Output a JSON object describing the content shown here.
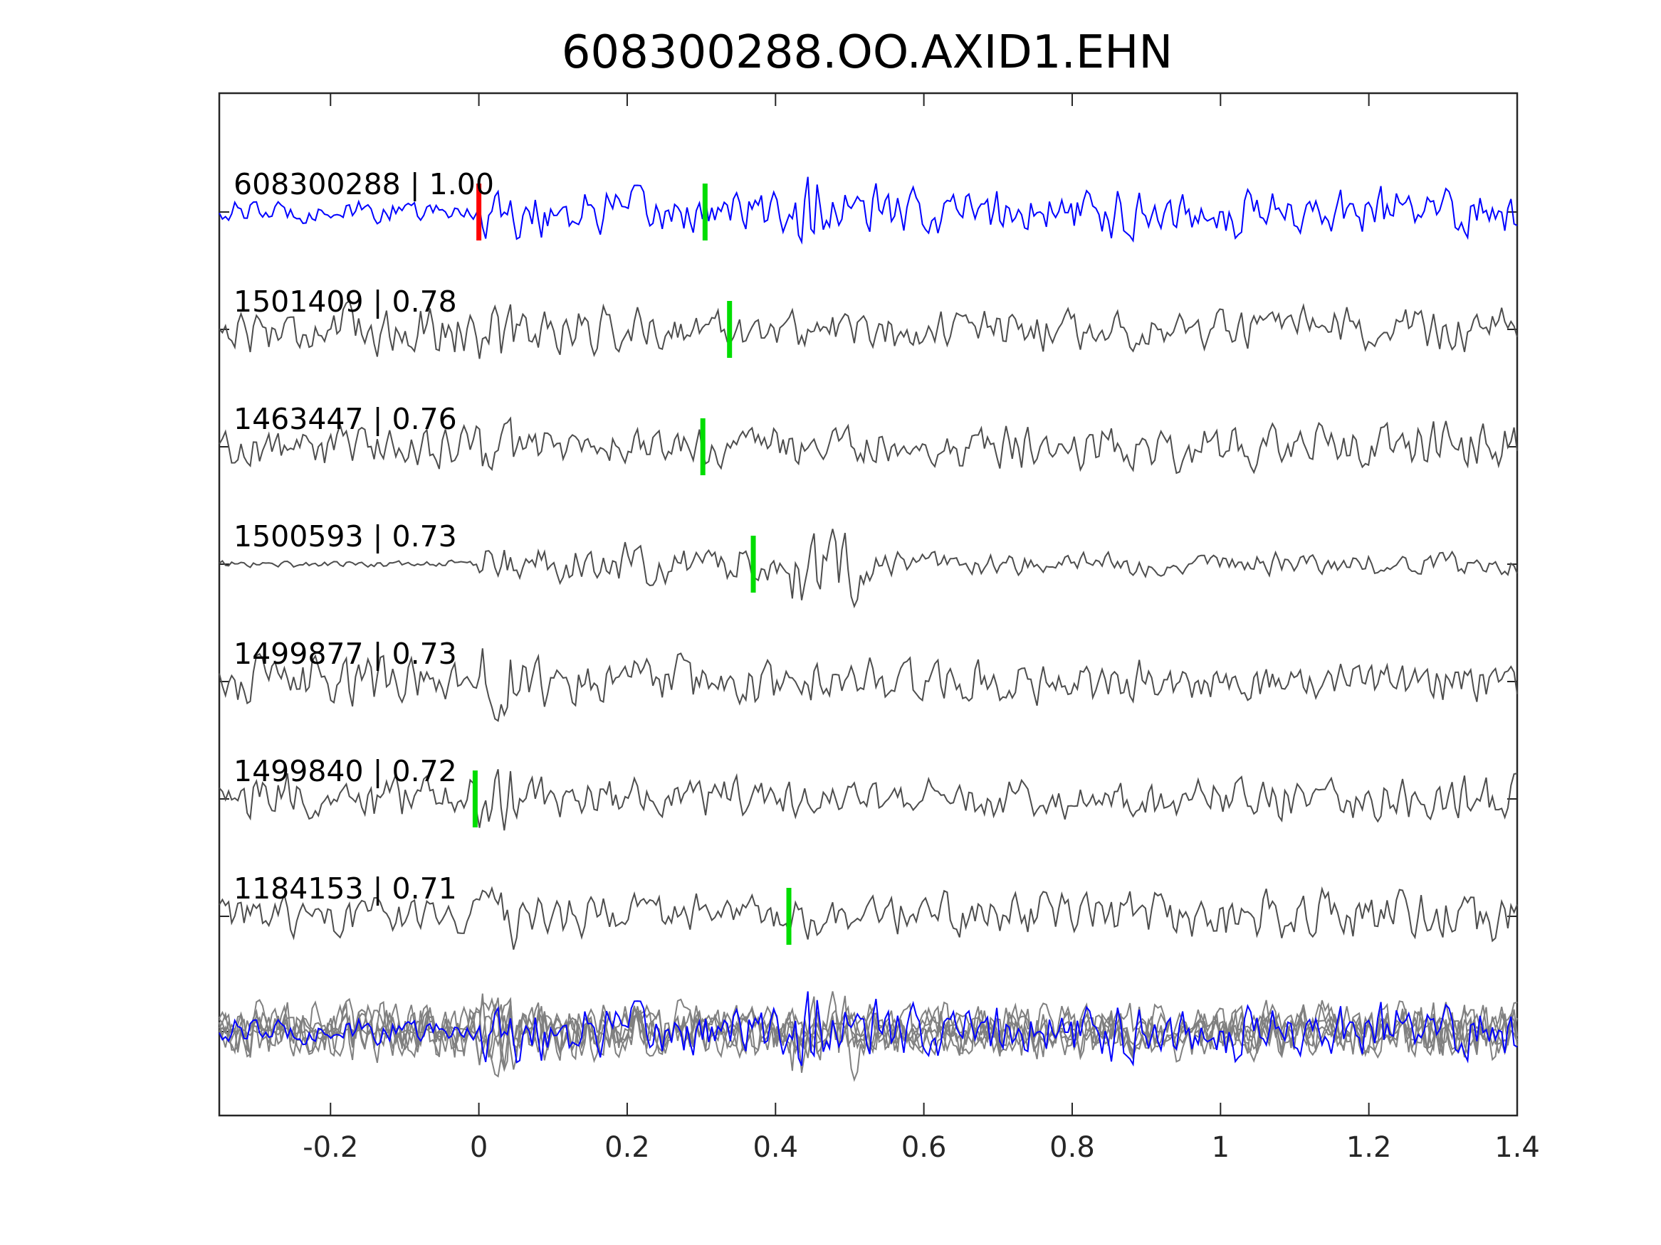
{
  "chart_data": {
    "type": "line",
    "title": "608300288.OO.AXID1.EHN",
    "xlabel": "",
    "ylabel": "",
    "xlim": [
      -0.35,
      1.4
    ],
    "x_ticks": [
      -0.2,
      0,
      0.2,
      0.4,
      0.6,
      0.8,
      1,
      1.2,
      1.4
    ],
    "x_tick_labels": [
      "-0.2",
      "0",
      "0.2",
      "0.4",
      "0.6",
      "0.8",
      "1",
      "1.2",
      "1.4"
    ],
    "grid": false,
    "colors": {
      "template": "#0000ff",
      "match": "#4d4d4d",
      "overlay": "#808080",
      "origin_pick": "#ff0000",
      "phase_pick": "#00dd00"
    },
    "series": [
      {
        "label": "608300288 | 1.00",
        "color": "#0000ff",
        "picks": [
          {
            "t": 0.0,
            "color": "#ff0000"
          },
          {
            "t": 0.305,
            "color": "#00dd00"
          }
        ]
      },
      {
        "label": "1501409 | 0.78",
        "color": "#4d4d4d",
        "picks": [
          {
            "t": 0.338,
            "color": "#00dd00"
          }
        ]
      },
      {
        "label": "1463447 | 0.76",
        "color": "#4d4d4d",
        "picks": [
          {
            "t": 0.302,
            "color": "#00dd00"
          }
        ]
      },
      {
        "label": "1500593 | 0.73",
        "color": "#4d4d4d",
        "picks": [
          {
            "t": 0.37,
            "color": "#00dd00"
          }
        ]
      },
      {
        "label": "1499877 | 0.73",
        "color": "#4d4d4d",
        "picks": []
      },
      {
        "label": "1499840 | 0.72",
        "color": "#4d4d4d",
        "picks": [
          {
            "t": -0.005,
            "color": "#00dd00"
          }
        ]
      },
      {
        "label": "1184153 | 0.71",
        "color": "#4d4d4d",
        "picks": [
          {
            "t": 0.418,
            "color": "#00dd00"
          }
        ]
      }
    ]
  }
}
